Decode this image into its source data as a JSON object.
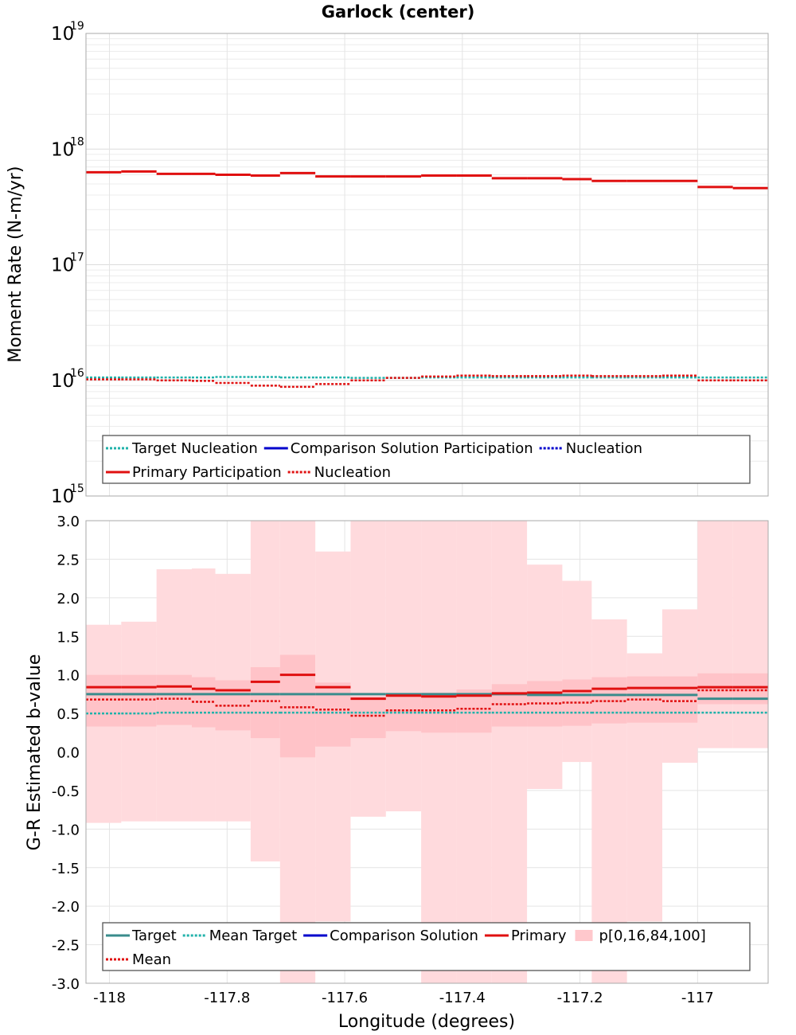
{
  "chart_data": [
    {
      "type": "line",
      "title": "Garlock (center)",
      "xlabel": "",
      "ylabel": "Moment Rate (N-m/yr)",
      "yscale": "log",
      "xlim": [
        -118.04,
        -116.88
      ],
      "ylim": [
        1000000000000000.0,
        1e+19
      ],
      "x_ticks": [],
      "y_ticks": [
        {
          "base": "10",
          "exp": "19",
          "value": 1e+19
        },
        {
          "base": "10",
          "exp": "18",
          "value": 1e+18
        },
        {
          "base": "10",
          "exp": "17",
          "value": 1e+17
        },
        {
          "base": "10",
          "exp": "16",
          "value": 1e+16
        },
        {
          "base": "10",
          "exp": "15",
          "value": 1000000000000000.0
        }
      ],
      "grid": true,
      "legend_position": "bottom",
      "x_edges": [
        -118.04,
        -117.98,
        -117.92,
        -117.86,
        -117.82,
        -117.76,
        -117.71,
        -117.65,
        -117.59,
        -117.53,
        -117.47,
        -117.41,
        -117.35,
        -117.29,
        -117.23,
        -117.18,
        -117.12,
        -117.06,
        -117.0,
        -116.94,
        -116.88
      ],
      "series": [
        {
          "name": "Target Nucleation",
          "color": "#20b2aa",
          "style": "dotted",
          "values": [
            1.06e+16,
            1.06e+16,
            1.06e+16,
            1.06e+16,
            1.07e+16,
            1.07e+16,
            1.06e+16,
            1.06e+16,
            1.05e+16,
            1.05e+16,
            1.06e+16,
            1.06e+16,
            1.06e+16,
            1.06e+16,
            1.06e+16,
            1.06e+16,
            1.06e+16,
            1.06e+16,
            1.06e+16,
            1.06e+16
          ]
        },
        {
          "name": "Comparison Solution Participation",
          "color": "#0000cc",
          "style": "solid",
          "values": []
        },
        {
          "name": "Nucleation",
          "color": "#0000cc",
          "style": "dotted",
          "values": []
        },
        {
          "name": "Primary Participation",
          "color": "#e01010",
          "style": "solid",
          "values": [
            6.3e+17,
            6.4e+17,
            6.1e+17,
            6.1e+17,
            6e+17,
            5.9e+17,
            6.2e+17,
            5.8e+17,
            5.8e+17,
            5.8e+17,
            5.9e+17,
            5.9e+17,
            5.6e+17,
            5.6e+17,
            5.5e+17,
            5.3e+17,
            5.3e+17,
            5.3e+17,
            4.7e+17,
            4.6e+17
          ]
        },
        {
          "name": "Nucleation",
          "color": "#e01010",
          "style": "dotted",
          "values": [
            1.02e+16,
            1.02e+16,
            1e+16,
            9900000000000000.0,
            9500000000000000.0,
            9000000000000000.0,
            8800000000000000.0,
            9300000000000000.0,
            1e+16,
            1.05e+16,
            1.08e+16,
            1.1e+16,
            1.09e+16,
            1.09e+16,
            1.1e+16,
            1.09e+16,
            1.09e+16,
            1.1e+16,
            1e+16,
            1e+16
          ]
        }
      ]
    },
    {
      "type": "line",
      "title": "",
      "xlabel": "Longitude (degrees)",
      "ylabel": "G-R Estimated b-value",
      "xlim": [
        -118.04,
        -116.88
      ],
      "ylim": [
        -3.0,
        3.0
      ],
      "x_ticks": [
        "-118",
        "-117.8",
        "-117.6",
        "-117.4",
        "-117.2",
        "-117"
      ],
      "x_tick_values": [
        -118,
        -117.8,
        -117.6,
        -117.4,
        -117.2,
        -117
      ],
      "y_ticks": [
        "3.0",
        "2.5",
        "2.0",
        "1.5",
        "1.0",
        "0.5",
        "0.0",
        "-0.5",
        "-1.0",
        "-1.5",
        "-2.0",
        "-2.5",
        "-3.0"
      ],
      "y_tick_values": [
        3.0,
        2.5,
        2.0,
        1.5,
        1.0,
        0.5,
        0.0,
        -0.5,
        -1.0,
        -1.5,
        -2.0,
        -2.5,
        -3.0
      ],
      "grid": true,
      "legend_position": "bottom",
      "x_edges": [
        -118.04,
        -117.98,
        -117.92,
        -117.86,
        -117.82,
        -117.76,
        -117.71,
        -117.65,
        -117.59,
        -117.53,
        -117.47,
        -117.41,
        -117.35,
        -117.29,
        -117.23,
        -117.18,
        -117.12,
        -117.06,
        -117.0,
        -116.94,
        -116.88
      ],
      "bands": {
        "name": "p[0,16,84,100]",
        "color": "#ffc8cc",
        "p0": [
          -0.92,
          -0.9,
          -0.9,
          -0.9,
          -0.9,
          -1.42,
          -3.0,
          -2.2,
          -0.84,
          -0.77,
          -3.0,
          -3.0,
          -3.0,
          -0.48,
          -0.13,
          -3.0,
          -2.2,
          -0.14,
          0.05,
          0.05
        ],
        "p16": [
          0.33,
          0.33,
          0.35,
          0.32,
          0.28,
          0.18,
          -0.07,
          0.07,
          0.18,
          0.27,
          0.25,
          0.25,
          0.33,
          0.33,
          0.34,
          0.37,
          0.38,
          0.38,
          0.62,
          0.62
        ],
        "p84": [
          1.0,
          1.0,
          1.0,
          0.97,
          0.93,
          1.1,
          1.26,
          0.9,
          0.72,
          0.75,
          0.77,
          0.81,
          0.88,
          0.92,
          0.94,
          0.97,
          0.98,
          0.98,
          1.02,
          1.02
        ],
        "p100": [
          1.65,
          1.69,
          2.37,
          2.38,
          2.31,
          3.0,
          3.0,
          2.6,
          3.0,
          3.0,
          3.0,
          3.0,
          3.0,
          2.43,
          2.22,
          1.72,
          1.28,
          1.85,
          3.0,
          3.0
        ]
      },
      "series": [
        {
          "name": "Target",
          "color": "#3a8c8c",
          "style": "solid",
          "values": [
            0.75,
            0.75,
            0.75,
            0.75,
            0.75,
            0.75,
            0.75,
            0.75,
            0.75,
            0.75,
            0.75,
            0.75,
            0.75,
            0.74,
            0.74,
            0.74,
            0.74,
            0.74,
            0.69,
            0.69
          ]
        },
        {
          "name": "Mean Target",
          "color": "#20b2aa",
          "style": "dotted",
          "values": [
            0.5,
            0.5,
            0.51,
            0.51,
            0.51,
            0.51,
            0.51,
            0.51,
            0.51,
            0.51,
            0.51,
            0.51,
            0.51,
            0.51,
            0.51,
            0.51,
            0.51,
            0.51,
            0.51,
            0.51
          ]
        },
        {
          "name": "Comparison Solution",
          "color": "#0000cc",
          "style": "solid",
          "values": []
        },
        {
          "name": "Primary",
          "color": "#e01010",
          "style": "solid",
          "values": [
            0.84,
            0.84,
            0.85,
            0.82,
            0.8,
            0.91,
            1.0,
            0.84,
            0.69,
            0.73,
            0.72,
            0.73,
            0.76,
            0.77,
            0.79,
            0.82,
            0.83,
            0.83,
            0.84,
            0.84
          ]
        },
        {
          "name": "Mean",
          "color": "#e01010",
          "style": "dotted",
          "values": [
            0.68,
            0.68,
            0.69,
            0.65,
            0.6,
            0.66,
            0.58,
            0.55,
            0.47,
            0.54,
            0.54,
            0.56,
            0.62,
            0.63,
            0.64,
            0.66,
            0.68,
            0.66,
            0.8,
            0.8
          ]
        }
      ]
    }
  ],
  "legends": [
    [
      {
        "label": "Target Nucleation",
        "color": "#20b2aa",
        "style": "dotted"
      },
      {
        "label": "Comparison Solution Participation",
        "color": "#0000cc",
        "style": "solid"
      },
      {
        "label": "Nucleation",
        "color": "#0000cc",
        "style": "dotted"
      },
      {
        "label": "Primary Participation",
        "color": "#e01010",
        "style": "solid"
      },
      {
        "label": "Nucleation",
        "color": "#e01010",
        "style": "dotted"
      }
    ],
    [
      {
        "label": "Target",
        "color": "#3a8c8c",
        "style": "solid"
      },
      {
        "label": "Mean Target",
        "color": "#20b2aa",
        "style": "dotted"
      },
      {
        "label": "Comparison Solution",
        "color": "#0000cc",
        "style": "solid"
      },
      {
        "label": "Primary",
        "color": "#e01010",
        "style": "solid"
      },
      {
        "label": "p[0,16,84,100]",
        "color": "#ffc8cc",
        "style": "box"
      },
      {
        "label": "Mean",
        "color": "#e01010",
        "style": "dotted"
      }
    ]
  ]
}
